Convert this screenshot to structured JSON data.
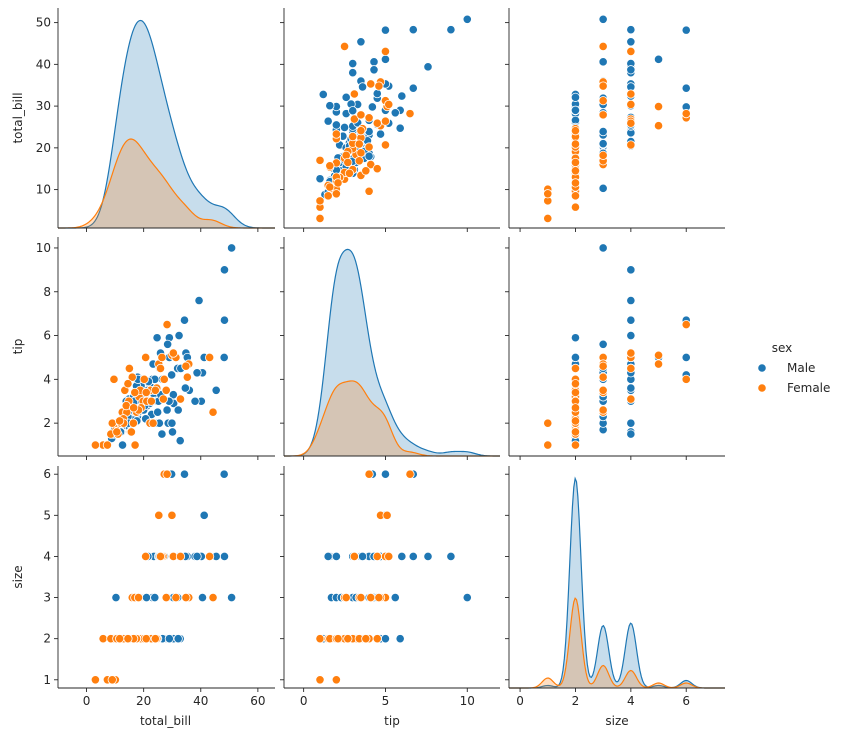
{
  "chart_data": {
    "type": "scatter",
    "kind": "pairplot",
    "variables": [
      "total_bill",
      "tip",
      "size"
    ],
    "hue": "sex",
    "legend": {
      "title": "sex",
      "placement": "right",
      "entries": [
        {
          "label": "Male",
          "color": "#1f77b4"
        },
        {
          "label": "Female",
          "color": "#ff7f0e"
        }
      ]
    },
    "axes": {
      "total_bill": {
        "label": "total_bill",
        "lim": [
          -10,
          66
        ],
        "ticks": [
          0,
          20,
          40,
          60
        ],
        "row_lim": [
          0.8,
          53.5
        ],
        "row_ticks": [
          10,
          20,
          30,
          40,
          50
        ]
      },
      "tip": {
        "label": "tip",
        "lim": [
          -1.2,
          12.0
        ],
        "ticks": [
          0,
          5,
          10
        ],
        "row_lim": [
          0.5,
          10.5
        ],
        "row_ticks": [
          2,
          4,
          6,
          8,
          10
        ]
      },
      "size": {
        "label": "size",
        "lim": [
          -0.4,
          7.4
        ],
        "ticks": [
          0,
          2,
          4,
          6
        ],
        "row_lim": [
          0.8,
          6.2
        ],
        "row_ticks": [
          1,
          2,
          3,
          4,
          5,
          6
        ]
      }
    },
    "series": [
      {
        "name": "Male",
        "color": "#1f77b4",
        "points": [
          [
            10.3,
            1.7,
            3
          ],
          [
            21.0,
            3.5,
            3
          ],
          [
            23.7,
            3.3,
            2
          ],
          [
            25.3,
            4.7,
            4
          ],
          [
            8.8,
            1.3,
            2
          ],
          [
            26.9,
            3.1,
            4
          ],
          [
            15.0,
            2.0,
            2
          ],
          [
            14.8,
            3.1,
            2
          ],
          [
            10.3,
            1.7,
            2
          ],
          [
            22.2,
            3.7,
            2
          ],
          [
            20.3,
            2.8,
            2
          ],
          [
            39.4,
            7.6,
            4
          ],
          [
            19.4,
            3.4,
            2
          ],
          [
            16.9,
            2.3,
            2
          ],
          [
            18.4,
            2.6,
            3
          ],
          [
            31.3,
            5.0,
            3
          ],
          [
            17.8,
            2.3,
            2
          ],
          [
            24.1,
            3.5,
            4
          ],
          [
            13.9,
            3.0,
            2
          ],
          [
            11.7,
            1.7,
            2
          ],
          [
            48.3,
            6.7,
            4
          ],
          [
            24.0,
            3.0,
            2
          ],
          [
            20.3,
            3.2,
            3
          ],
          [
            32.4,
            6.0,
            4
          ],
          [
            28.6,
            2.0,
            3
          ],
          [
            50.8,
            10.0,
            3
          ],
          [
            48.2,
            5.0,
            6
          ],
          [
            34.8,
            5.2,
            4
          ],
          [
            40.2,
            3.0,
            4
          ],
          [
            48.3,
            9.0,
            4
          ],
          [
            44.3,
            2.5,
            3
          ],
          [
            16.3,
            2.0,
            2
          ],
          [
            12.6,
            1.0,
            2
          ],
          [
            7.3,
            1.0,
            1
          ],
          [
            29.0,
            5.9,
            2
          ],
          [
            29.9,
            2.0,
            2
          ],
          [
            22.8,
            2.4,
            2
          ],
          [
            17.3,
            3.5,
            2
          ],
          [
            20.7,
            2.2,
            2
          ],
          [
            18.3,
            3.0,
            2
          ],
          [
            13.0,
            2.0,
            2
          ],
          [
            16.6,
            2.5,
            2
          ],
          [
            28.2,
            2.6,
            2
          ],
          [
            41.2,
            5.0,
            5
          ],
          [
            34.3,
            6.7,
            6
          ],
          [
            30.1,
            1.6,
            4
          ],
          [
            12.3,
            2.0,
            2
          ],
          [
            21.2,
            2.8,
            2
          ],
          [
            25.6,
            4.5,
            4
          ],
          [
            18.3,
            3.5,
            3
          ],
          [
            15.4,
            3.0,
            2
          ],
          [
            22.4,
            3.5,
            2
          ],
          [
            16.0,
            2.0,
            2
          ],
          [
            19.8,
            3.1,
            2
          ],
          [
            17.9,
            4.1,
            3
          ],
          [
            28.4,
            5.6,
            3
          ],
          [
            35.3,
            5.0,
            4
          ],
          [
            9.6,
            1.7,
            2
          ],
          [
            15.7,
            2.0,
            2
          ],
          [
            24.7,
            5.9,
            2
          ],
          [
            32.8,
            1.2,
            2
          ],
          [
            38.0,
            3.0,
            4
          ],
          [
            22.2,
            2.0,
            2
          ],
          [
            16.0,
            2.3,
            3
          ],
          [
            11.0,
            1.5,
            2
          ],
          [
            13.4,
            2.5,
            2
          ],
          [
            27.2,
            4.0,
            4
          ],
          [
            18.7,
            4.0,
            3
          ],
          [
            20.5,
            3.5,
            4
          ],
          [
            14.3,
            2.5,
            2
          ],
          [
            20.8,
            3.0,
            3
          ],
          [
            29.8,
            4.2,
            6
          ],
          [
            23.1,
            4.0,
            3
          ],
          [
            12.0,
            2.0,
            2
          ],
          [
            25.9,
            5.2,
            4
          ],
          [
            20.9,
            3.5,
            3
          ],
          [
            24.6,
            3.0,
            2
          ],
          [
            15.7,
            1.6,
            2
          ],
          [
            18.1,
            2.5,
            3
          ],
          [
            21.0,
            3.0,
            3
          ],
          [
            13.8,
            2.0,
            2
          ],
          [
            26.4,
            1.5,
            4
          ],
          [
            40.6,
            4.3,
            3
          ],
          [
            10.1,
            1.8,
            2
          ],
          [
            23.3,
            4.7,
            2
          ],
          [
            16.5,
            2.2,
            2
          ],
          [
            30.4,
            3.3,
            3
          ],
          [
            18.8,
            3.2,
            2
          ],
          [
            12.7,
            2.4,
            2
          ],
          [
            27.3,
            4.0,
            4
          ],
          [
            20.7,
            5.0,
            2
          ],
          [
            22.1,
            2.9,
            2
          ],
          [
            17.1,
            2.5,
            2
          ],
          [
            9.8,
            1.7,
            2
          ],
          [
            45.4,
            3.5,
            4
          ],
          [
            23.6,
            3.5,
            4
          ],
          [
            31.9,
            4.5,
            3
          ],
          [
            14.5,
            2.3,
            2
          ],
          [
            19.1,
            3.7,
            2
          ],
          [
            25.2,
            3.0,
            4
          ],
          [
            11.4,
            1.9,
            2
          ],
          [
            30.5,
            2.9,
            2
          ],
          [
            16.5,
            3.2,
            3
          ],
          [
            21.5,
            3.5,
            4
          ],
          [
            18.9,
            2.7,
            2
          ],
          [
            33.0,
            4.5,
            4
          ],
          [
            26.0,
            3.3,
            2
          ],
          [
            13.3,
            1.9,
            2
          ],
          [
            20.0,
            2.6,
            2
          ],
          [
            15.4,
            2.6,
            2
          ],
          [
            24.3,
            2.0,
            2
          ],
          [
            17.5,
            3.7,
            2
          ],
          [
            28.9,
            3.0,
            2
          ],
          [
            22.7,
            2.0,
            2
          ],
          [
            36.0,
            3.5,
            3
          ],
          [
            14.0,
            2.8,
            2
          ],
          [
            19.6,
            3.2,
            2
          ],
          [
            12.2,
            1.6,
            2
          ],
          [
            34.6,
            3.6,
            4
          ],
          [
            26.6,
            4.0,
            2
          ],
          [
            9.4,
            1.5,
            2
          ],
          [
            23.9,
            4.0,
            3
          ],
          [
            16.8,
            3.0,
            2
          ],
          [
            21.7,
            3.9,
            2
          ],
          [
            29.0,
            5.0,
            2
          ],
          [
            18.0,
            4.0,
            2
          ],
          [
            15.1,
            1.8,
            2
          ],
          [
            25.5,
            2.0,
            4
          ],
          [
            11.9,
            1.6,
            2
          ],
          [
            32.1,
            2.6,
            2
          ],
          [
            19.3,
            3.0,
            2
          ],
          [
            27.9,
            3.5,
            3
          ],
          [
            13.5,
            2.5,
            2
          ],
          [
            22.9,
            2.0,
            2
          ],
          [
            17.6,
            2.1,
            2
          ],
          [
            20.4,
            2.8,
            2
          ],
          [
            24.9,
            2.5,
            2
          ],
          [
            14.7,
            2.0,
            2
          ],
          [
            38.7,
            4.3,
            4
          ],
          [
            10.9,
            1.5,
            2
          ]
        ]
      },
      {
        "name": "Female",
        "color": "#ff7f0e",
        "points": [
          [
            17.0,
            1.0,
            2
          ],
          [
            24.6,
            3.6,
            2
          ],
          [
            35.3,
            4.1,
            3
          ],
          [
            14.8,
            3.0,
            2
          ],
          [
            10.3,
            1.7,
            2
          ],
          [
            26.9,
            3.1,
            4
          ],
          [
            16.0,
            4.1,
            3
          ],
          [
            18.4,
            3.2,
            2
          ],
          [
            20.7,
            5.0,
            4
          ],
          [
            25.3,
            4.7,
            5
          ],
          [
            5.8,
            1.0,
            2
          ],
          [
            44.3,
            2.5,
            3
          ],
          [
            22.4,
            3.5,
            2
          ],
          [
            3.1,
            1.0,
            1
          ],
          [
            15.4,
            1.6,
            2
          ],
          [
            16.4,
            2.0,
            2
          ],
          [
            26.4,
            5.0,
            4
          ],
          [
            7.3,
            1.0,
            1
          ],
          [
            13.4,
            3.5,
            2
          ],
          [
            27.2,
            4.0,
            6
          ],
          [
            43.1,
            5.0,
            4
          ],
          [
            29.9,
            5.1,
            5
          ],
          [
            9.6,
            4.0,
            2
          ],
          [
            10.1,
            2.0,
            1
          ],
          [
            8.5,
            1.5,
            2
          ],
          [
            12.5,
            2.5,
            2
          ],
          [
            11.0,
            1.5,
            2
          ],
          [
            19.8,
            3.0,
            2
          ],
          [
            22.2,
            2.0,
            2
          ],
          [
            31.3,
            5.0,
            3
          ],
          [
            18.8,
            3.5,
            2
          ],
          [
            14.1,
            2.5,
            2
          ],
          [
            28.2,
            6.5,
            6
          ],
          [
            35.8,
            4.7,
            3
          ],
          [
            21.1,
            3.0,
            2
          ],
          [
            12.9,
            2.2,
            2
          ],
          [
            30.4,
            5.2,
            4
          ],
          [
            16.9,
            3.4,
            3
          ],
          [
            23.3,
            2.0,
            2
          ],
          [
            13.9,
            2.8,
            2
          ],
          [
            19.1,
            2.7,
            2
          ],
          [
            25.9,
            4.5,
            4
          ],
          [
            15.7,
            1.6,
            2
          ],
          [
            34.8,
            4.6,
            3
          ],
          [
            10.6,
            1.6,
            2
          ],
          [
            20.2,
            4.0,
            2
          ],
          [
            17.5,
            2.5,
            2
          ],
          [
            27.9,
            3.5,
            3
          ],
          [
            12.0,
            2.0,
            2
          ],
          [
            22.7,
            3.0,
            2
          ],
          [
            9.0,
            2.0,
            1
          ],
          [
            15.0,
            4.5,
            2
          ],
          [
            18.2,
            2.6,
            3
          ],
          [
            13.0,
            2.0,
            2
          ],
          [
            24.1,
            3.5,
            2
          ],
          [
            11.6,
            2.1,
            2
          ],
          [
            32.9,
            3.1,
            4
          ],
          [
            16.5,
            2.7,
            2
          ],
          [
            20.9,
            3.4,
            2
          ],
          [
            14.5,
            3.8,
            2
          ]
        ]
      }
    ]
  }
}
